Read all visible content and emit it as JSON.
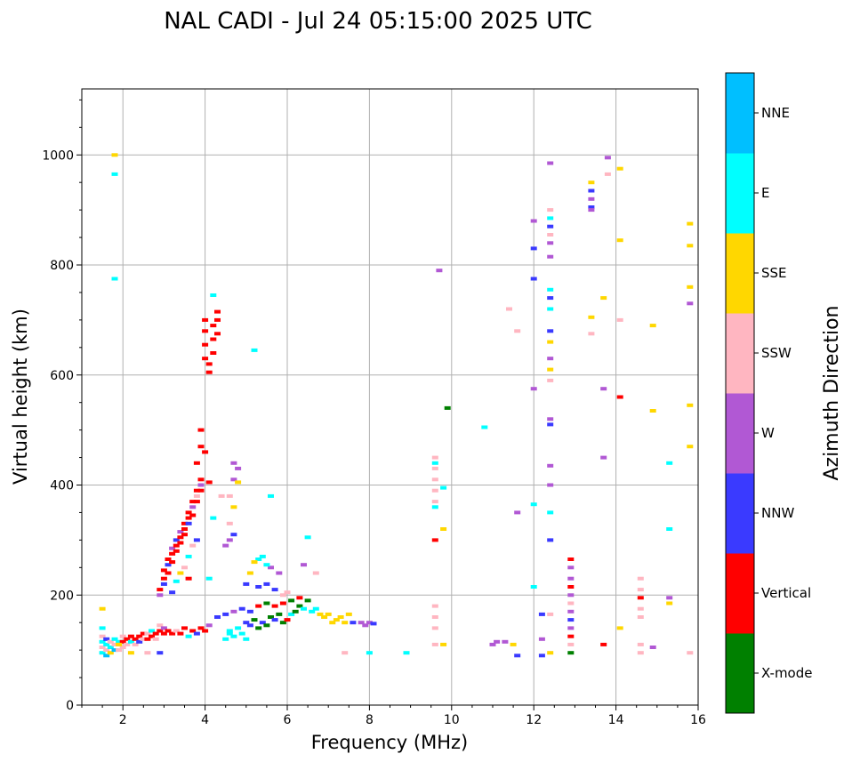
{
  "chart_data": {
    "type": "scatter",
    "title": "NAL CADI - Jul 24 05:15:00 2025 UTC",
    "xlabel": "Frequency (MHz)",
    "ylabel": "Virtual height (km)",
    "xlim": [
      1,
      16
    ],
    "ylim": [
      0,
      1120
    ],
    "xticks": [
      2,
      4,
      6,
      8,
      10,
      12,
      14,
      16
    ],
    "yticks": [
      0,
      200,
      400,
      600,
      800,
      1000
    ],
    "grid": true,
    "colorbar": {
      "title": "Azimuth Direction",
      "categories": [
        {
          "name": "X-mode",
          "color": "#008000"
        },
        {
          "name": "Vertical",
          "color": "#ff0000"
        },
        {
          "name": "NNW",
          "color": "#3a3aff"
        },
        {
          "name": "W",
          "color": "#b158d4"
        },
        {
          "name": "SSW",
          "color": "#ffb6c1"
        },
        {
          "name": "SSE",
          "color": "#ffd700"
        },
        {
          "name": "E",
          "color": "#00ffff"
        },
        {
          "name": "NNE",
          "color": "#00bfff"
        }
      ]
    },
    "points": [
      [
        1.5,
        95,
        "E"
      ],
      [
        1.5,
        105,
        "SSW"
      ],
      [
        1.5,
        115,
        "E"
      ],
      [
        1.5,
        125,
        "SSW"
      ],
      [
        1.5,
        140,
        "E"
      ],
      [
        1.5,
        175,
        "SSE"
      ],
      [
        1.6,
        90,
        "NNE"
      ],
      [
        1.6,
        100,
        "SSW"
      ],
      [
        1.6,
        110,
        "E"
      ],
      [
        1.6,
        120,
        "NNW"
      ],
      [
        1.7,
        95,
        "SSE"
      ],
      [
        1.7,
        105,
        "E"
      ],
      [
        1.7,
        115,
        "SSW"
      ],
      [
        1.8,
        100,
        "NNE"
      ],
      [
        1.8,
        110,
        "SSW"
      ],
      [
        1.8,
        120,
        "E"
      ],
      [
        1.9,
        100,
        "SSW"
      ],
      [
        1.9,
        115,
        "E"
      ],
      [
        2.0,
        105,
        "SSW"
      ],
      [
        2.0,
        115,
        "Vertical"
      ],
      [
        2.0,
        125,
        "SSW"
      ],
      [
        2.1,
        110,
        "SSW"
      ],
      [
        2.1,
        120,
        "Vertical"
      ],
      [
        2.2,
        115,
        "E"
      ],
      [
        2.2,
        125,
        "Vertical"
      ],
      [
        2.3,
        110,
        "SSW"
      ],
      [
        2.3,
        120,
        "Vertical"
      ],
      [
        2.4,
        115,
        "NNW"
      ],
      [
        2.4,
        125,
        "Vertical"
      ],
      [
        2.5,
        120,
        "SSW"
      ],
      [
        2.5,
        130,
        "Vertical"
      ],
      [
        2.6,
        120,
        "Vertical"
      ],
      [
        2.6,
        130,
        "SSW"
      ],
      [
        2.7,
        125,
        "Vertical"
      ],
      [
        2.7,
        135,
        "E"
      ],
      [
        2.8,
        130,
        "Vertical"
      ],
      [
        2.8,
        120,
        "SSW"
      ],
      [
        2.9,
        135,
        "Vertical"
      ],
      [
        2.9,
        145,
        "SSW"
      ],
      [
        3.0,
        130,
        "Vertical"
      ],
      [
        3.0,
        140,
        "W"
      ],
      [
        3.1,
        135,
        "Vertical"
      ],
      [
        3.2,
        130,
        "Vertical"
      ],
      [
        3.3,
        135,
        "SSW"
      ],
      [
        3.4,
        130,
        "Vertical"
      ],
      [
        3.5,
        140,
        "Vertical"
      ],
      [
        3.6,
        125,
        "E"
      ],
      [
        3.7,
        135,
        "Vertical"
      ],
      [
        3.8,
        130,
        "NNW"
      ],
      [
        3.9,
        140,
        "Vertical"
      ],
      [
        4.0,
        135,
        "Vertical"
      ],
      [
        4.1,
        145,
        "W"
      ],
      [
        1.9,
        110,
        "SSE"
      ],
      [
        2.2,
        95,
        "SSE"
      ],
      [
        2.6,
        95,
        "SSW"
      ],
      [
        2.9,
        95,
        "NNW"
      ],
      [
        2.9,
        200,
        "W"
      ],
      [
        2.9,
        210,
        "Vertical"
      ],
      [
        3.0,
        220,
        "NNW"
      ],
      [
        3.0,
        230,
        "Vertical"
      ],
      [
        3.0,
        245,
        "Vertical"
      ],
      [
        3.1,
        240,
        "Vertical"
      ],
      [
        3.1,
        255,
        "NNW"
      ],
      [
        3.1,
        265,
        "Vertical"
      ],
      [
        3.2,
        260,
        "Vertical"
      ],
      [
        3.2,
        275,
        "Vertical"
      ],
      [
        3.2,
        285,
        "W"
      ],
      [
        3.3,
        280,
        "Vertical"
      ],
      [
        3.3,
        290,
        "Vertical"
      ],
      [
        3.3,
        300,
        "NNW"
      ],
      [
        3.4,
        295,
        "Vertical"
      ],
      [
        3.4,
        305,
        "Vertical"
      ],
      [
        3.4,
        315,
        "W"
      ],
      [
        3.5,
        310,
        "Vertical"
      ],
      [
        3.5,
        320,
        "Vertical"
      ],
      [
        3.5,
        330,
        "Vertical"
      ],
      [
        3.6,
        330,
        "NNW"
      ],
      [
        3.6,
        340,
        "Vertical"
      ],
      [
        3.6,
        350,
        "Vertical"
      ],
      [
        3.7,
        345,
        "Vertical"
      ],
      [
        3.7,
        360,
        "W"
      ],
      [
        3.7,
        370,
        "Vertical"
      ],
      [
        3.8,
        370,
        "Vertical"
      ],
      [
        3.8,
        380,
        "SSW"
      ],
      [
        3.8,
        390,
        "Vertical"
      ],
      [
        3.9,
        390,
        "Vertical"
      ],
      [
        3.9,
        400,
        "W"
      ],
      [
        3.9,
        410,
        "Vertical"
      ],
      [
        4.1,
        405,
        "Vertical"
      ],
      [
        3.2,
        205,
        "NNW"
      ],
      [
        3.3,
        225,
        "E"
      ],
      [
        3.4,
        240,
        "SSE"
      ],
      [
        3.5,
        250,
        "SSW"
      ],
      [
        3.6,
        270,
        "E"
      ],
      [
        3.7,
        290,
        "SSW"
      ],
      [
        3.8,
        300,
        "NNW"
      ],
      [
        3.6,
        230,
        "Vertical"
      ],
      [
        3.9,
        470,
        "Vertical"
      ],
      [
        3.9,
        500,
        "Vertical"
      ],
      [
        3.8,
        440,
        "Vertical"
      ],
      [
        4.0,
        460,
        "Vertical"
      ],
      [
        4.0,
        700,
        "Vertical"
      ],
      [
        4.0,
        680,
        "Vertical"
      ],
      [
        4.0,
        655,
        "Vertical"
      ],
      [
        4.0,
        630,
        "Vertical"
      ],
      [
        4.1,
        605,
        "Vertical"
      ],
      [
        4.1,
        620,
        "Vertical"
      ],
      [
        4.2,
        640,
        "Vertical"
      ],
      [
        4.2,
        665,
        "Vertical"
      ],
      [
        4.2,
        690,
        "Vertical"
      ],
      [
        4.3,
        700,
        "Vertical"
      ],
      [
        4.3,
        675,
        "Vertical"
      ],
      [
        4.2,
        745,
        "E"
      ],
      [
        4.3,
        715,
        "Vertical"
      ],
      [
        4.2,
        340,
        "E"
      ],
      [
        4.1,
        230,
        "E"
      ],
      [
        4.5,
        290,
        "W"
      ],
      [
        4.6,
        300,
        "W"
      ],
      [
        4.7,
        310,
        "NNW"
      ],
      [
        4.6,
        330,
        "SSW"
      ],
      [
        4.7,
        360,
        "SSE"
      ],
      [
        4.6,
        380,
        "SSW"
      ],
      [
        4.7,
        410,
        "W"
      ],
      [
        4.8,
        430,
        "W"
      ],
      [
        4.7,
        440,
        "W"
      ],
      [
        4.5,
        120,
        "E"
      ],
      [
        4.6,
        130,
        "E"
      ],
      [
        4.7,
        125,
        "E"
      ],
      [
        4.8,
        140,
        "E"
      ],
      [
        4.9,
        130,
        "E"
      ],
      [
        5.0,
        120,
        "E"
      ],
      [
        5.0,
        150,
        "NNW"
      ],
      [
        5.1,
        145,
        "NNW"
      ],
      [
        5.2,
        155,
        "X-mode"
      ],
      [
        5.3,
        140,
        "X-mode"
      ],
      [
        5.4,
        150,
        "NNW"
      ],
      [
        5.5,
        145,
        "X-mode"
      ],
      [
        5.6,
        160,
        "X-mode"
      ],
      [
        5.7,
        155,
        "NNW"
      ],
      [
        5.8,
        165,
        "X-mode"
      ],
      [
        5.9,
        150,
        "X-mode"
      ],
      [
        6.0,
        155,
        "Vertical"
      ],
      [
        6.1,
        165,
        "E"
      ],
      [
        6.2,
        170,
        "X-mode"
      ],
      [
        6.3,
        180,
        "X-mode"
      ],
      [
        6.4,
        175,
        "E"
      ],
      [
        6.5,
        190,
        "X-mode"
      ],
      [
        6.6,
        170,
        "E"
      ],
      [
        6.7,
        175,
        "E"
      ],
      [
        6.8,
        165,
        "SSE"
      ],
      [
        6.9,
        160,
        "SSE"
      ],
      [
        7.0,
        165,
        "SSE"
      ],
      [
        7.1,
        150,
        "SSE"
      ],
      [
        7.2,
        155,
        "SSE"
      ],
      [
        7.3,
        160,
        "SSE"
      ],
      [
        7.4,
        150,
        "SSE"
      ],
      [
        7.5,
        165,
        "SSE"
      ],
      [
        7.6,
        150,
        "NNW"
      ],
      [
        7.8,
        150,
        "W"
      ],
      [
        7.9,
        145,
        "W"
      ],
      [
        8.0,
        150,
        "W"
      ],
      [
        8.1,
        148,
        "NNW"
      ],
      [
        4.3,
        160,
        "NNW"
      ],
      [
        4.5,
        165,
        "NNW"
      ],
      [
        4.7,
        170,
        "W"
      ],
      [
        4.9,
        175,
        "NNW"
      ],
      [
        5.1,
        170,
        "NNW"
      ],
      [
        5.3,
        180,
        "Vertical"
      ],
      [
        5.5,
        185,
        "X-mode"
      ],
      [
        5.7,
        180,
        "Vertical"
      ],
      [
        5.9,
        185,
        "Vertical"
      ],
      [
        6.1,
        190,
        "X-mode"
      ],
      [
        6.3,
        195,
        "Vertical"
      ],
      [
        5.3,
        215,
        "NNW"
      ],
      [
        5.5,
        220,
        "NNW"
      ],
      [
        5.7,
        210,
        "NNW"
      ],
      [
        5.8,
        240,
        "W"
      ],
      [
        5.6,
        250,
        "W"
      ],
      [
        5.5,
        255,
        "E"
      ],
      [
        5.3,
        265,
        "E"
      ],
      [
        5.2,
        260,
        "SSE"
      ],
      [
        5.1,
        240,
        "SSE"
      ],
      [
        5.0,
        220,
        "NNW"
      ],
      [
        5.9,
        200,
        "SSW"
      ],
      [
        6.0,
        205,
        "SSW"
      ],
      [
        5.4,
        270,
        "E"
      ],
      [
        6.4,
        255,
        "W"
      ],
      [
        6.7,
        240,
        "SSW"
      ],
      [
        6.5,
        305,
        "E"
      ],
      [
        5.2,
        645,
        "E"
      ],
      [
        4.8,
        405,
        "SSE"
      ],
      [
        5.6,
        380,
        "E"
      ],
      [
        4.4,
        380,
        "SSW"
      ],
      [
        4.6,
        135,
        "E"
      ],
      [
        9.6,
        450,
        "SSW"
      ],
      [
        9.6,
        430,
        "SSW"
      ],
      [
        9.6,
        410,
        "SSW"
      ],
      [
        9.6,
        390,
        "SSW"
      ],
      [
        9.6,
        370,
        "SSW"
      ],
      [
        9.6,
        440,
        "E"
      ],
      [
        9.6,
        360,
        "E"
      ],
      [
        9.6,
        180,
        "SSW"
      ],
      [
        9.6,
        160,
        "SSW"
      ],
      [
        9.6,
        140,
        "SSW"
      ],
      [
        9.6,
        110,
        "SSW"
      ],
      [
        9.6,
        300,
        "Vertical"
      ],
      [
        9.8,
        395,
        "E"
      ],
      [
        9.8,
        320,
        "SSE"
      ],
      [
        9.8,
        110,
        "SSE"
      ],
      [
        9.9,
        540,
        "X-mode"
      ],
      [
        9.7,
        790,
        "W"
      ],
      [
        10.8,
        505,
        "E"
      ],
      [
        8.0,
        95,
        "E"
      ],
      [
        8.9,
        95,
        "E"
      ],
      [
        7.4,
        95,
        "SSW"
      ],
      [
        1.8,
        965,
        "E"
      ],
      [
        1.8,
        1000,
        "SSE"
      ],
      [
        1.8,
        775,
        "E"
      ],
      [
        11.0,
        110,
        "W"
      ],
      [
        11.1,
        115,
        "W"
      ],
      [
        11.3,
        115,
        "W"
      ],
      [
        11.5,
        110,
        "SSE"
      ],
      [
        11.6,
        90,
        "NNW"
      ],
      [
        11.4,
        720,
        "SSW"
      ],
      [
        11.6,
        680,
        "SSW"
      ],
      [
        11.6,
        350,
        "W"
      ],
      [
        12.4,
        985,
        "W"
      ],
      [
        12.4,
        900,
        "SSW"
      ],
      [
        12.4,
        885,
        "E"
      ],
      [
        12.4,
        870,
        "NNW"
      ],
      [
        12.4,
        855,
        "SSW"
      ],
      [
        12.4,
        840,
        "W"
      ],
      [
        12.4,
        815,
        "W"
      ],
      [
        12.4,
        755,
        "E"
      ],
      [
        12.4,
        740,
        "NNW"
      ],
      [
        12.4,
        720,
        "E"
      ],
      [
        12.4,
        680,
        "NNW"
      ],
      [
        12.4,
        660,
        "SSE"
      ],
      [
        12.4,
        630,
        "W"
      ],
      [
        12.4,
        610,
        "SSE"
      ],
      [
        12.4,
        590,
        "SSW"
      ],
      [
        12.4,
        520,
        "W"
      ],
      [
        12.4,
        510,
        "NNW"
      ],
      [
        12.4,
        435,
        "W"
      ],
      [
        12.4,
        400,
        "W"
      ],
      [
        12.4,
        350,
        "E"
      ],
      [
        12.4,
        300,
        "NNW"
      ],
      [
        12.4,
        165,
        "SSW"
      ],
      [
        12.4,
        95,
        "SSE"
      ],
      [
        12.0,
        880,
        "W"
      ],
      [
        12.0,
        830,
        "NNW"
      ],
      [
        12.0,
        775,
        "NNW"
      ],
      [
        12.0,
        575,
        "W"
      ],
      [
        12.0,
        365,
        "E"
      ],
      [
        12.0,
        215,
        "E"
      ],
      [
        12.2,
        165,
        "NNW"
      ],
      [
        12.2,
        120,
        "W"
      ],
      [
        12.2,
        90,
        "NNW"
      ],
      [
        12.9,
        265,
        "Vertical"
      ],
      [
        12.9,
        250,
        "W"
      ],
      [
        12.9,
        230,
        "W"
      ],
      [
        12.9,
        215,
        "Vertical"
      ],
      [
        12.9,
        200,
        "W"
      ],
      [
        12.9,
        185,
        "SSW"
      ],
      [
        12.9,
        170,
        "W"
      ],
      [
        12.9,
        155,
        "NNW"
      ],
      [
        12.9,
        140,
        "W"
      ],
      [
        12.9,
        125,
        "Vertical"
      ],
      [
        12.9,
        110,
        "SSW"
      ],
      [
        12.9,
        95,
        "X-mode"
      ],
      [
        13.4,
        950,
        "SSE"
      ],
      [
        13.4,
        935,
        "NNW"
      ],
      [
        13.4,
        920,
        "W"
      ],
      [
        13.4,
        905,
        "NNW"
      ],
      [
        13.4,
        900,
        "W"
      ],
      [
        13.4,
        705,
        "SSE"
      ],
      [
        13.4,
        675,
        "SSW"
      ],
      [
        13.7,
        740,
        "SSE"
      ],
      [
        13.7,
        575,
        "W"
      ],
      [
        13.7,
        450,
        "W"
      ],
      [
        13.7,
        110,
        "Vertical"
      ],
      [
        13.8,
        995,
        "W"
      ],
      [
        13.8,
        965,
        "SSW"
      ],
      [
        14.1,
        975,
        "SSE"
      ],
      [
        14.1,
        845,
        "SSE"
      ],
      [
        14.1,
        700,
        "SSW"
      ],
      [
        14.1,
        560,
        "Vertical"
      ],
      [
        14.1,
        140,
        "SSE"
      ],
      [
        14.6,
        230,
        "SSW"
      ],
      [
        14.6,
        210,
        "SSW"
      ],
      [
        14.6,
        195,
        "Vertical"
      ],
      [
        14.6,
        175,
        "SSW"
      ],
      [
        14.6,
        160,
        "SSW"
      ],
      [
        14.6,
        110,
        "SSW"
      ],
      [
        14.6,
        95,
        "SSW"
      ],
      [
        14.9,
        690,
        "SSE"
      ],
      [
        14.9,
        535,
        "SSE"
      ],
      [
        14.9,
        105,
        "W"
      ],
      [
        15.3,
        440,
        "E"
      ],
      [
        15.3,
        320,
        "E"
      ],
      [
        15.3,
        195,
        "W"
      ],
      [
        15.3,
        185,
        "SSE"
      ],
      [
        15.8,
        875,
        "SSE"
      ],
      [
        15.8,
        835,
        "SSE"
      ],
      [
        15.8,
        760,
        "SSE"
      ],
      [
        15.8,
        730,
        "W"
      ],
      [
        15.8,
        545,
        "SSE"
      ],
      [
        15.8,
        470,
        "SSE"
      ],
      [
        15.8,
        95,
        "SSW"
      ]
    ]
  }
}
